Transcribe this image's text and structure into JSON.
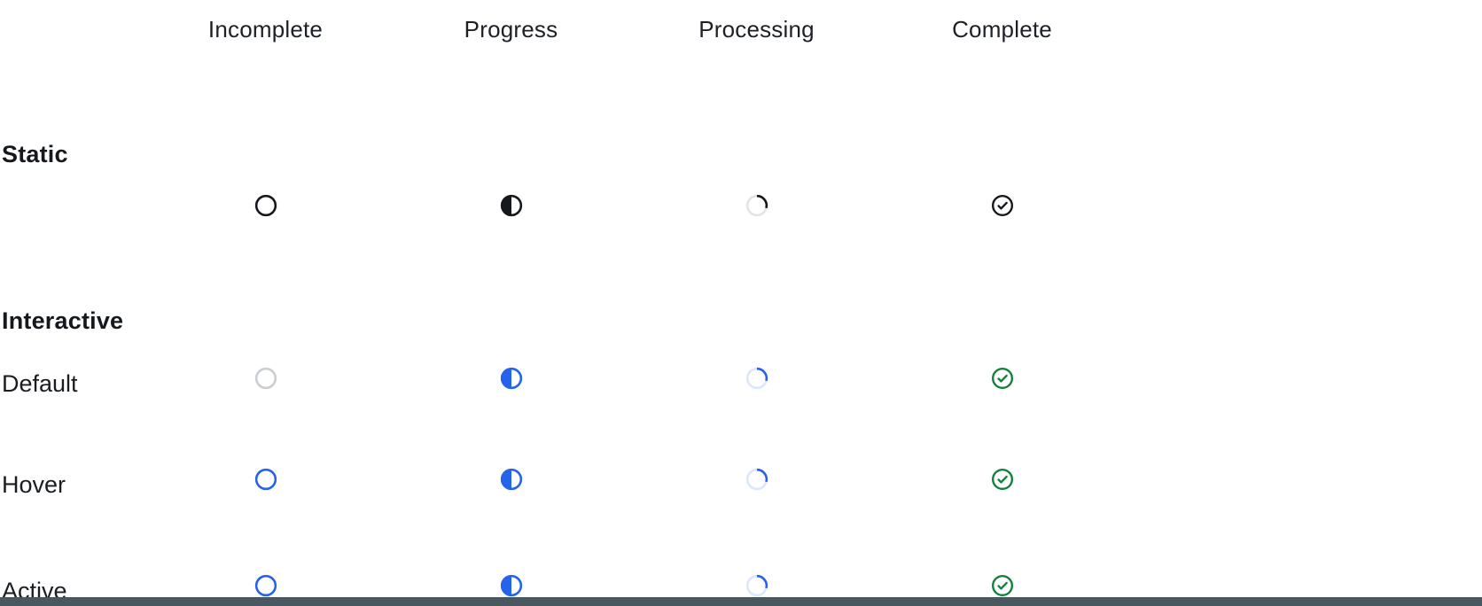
{
  "columns": [
    "Incomplete",
    "Progress",
    "Processing",
    "Complete"
  ],
  "sections": [
    {
      "label": "Static",
      "rows": [
        {
          "name": "static",
          "label": "",
          "interactable": false,
          "cells": [
            {
              "type": "incomplete",
              "color": "ink"
            },
            {
              "type": "progress",
              "color": "ink"
            },
            {
              "type": "processing",
              "color": "ink",
              "track": "gray_track"
            },
            {
              "type": "complete",
              "color": "ink"
            }
          ]
        }
      ]
    },
    {
      "label": "Interactive",
      "rows": [
        {
          "name": "default",
          "label": "Default",
          "interactable": true,
          "cells": [
            {
              "type": "incomplete",
              "color": "gray_muted"
            },
            {
              "type": "progress",
              "color": "blue"
            },
            {
              "type": "processing",
              "color": "blue",
              "track": "blue_track"
            },
            {
              "type": "complete",
              "color": "green"
            }
          ]
        },
        {
          "name": "hover",
          "label": "Hover",
          "interactable": true,
          "cells": [
            {
              "type": "incomplete",
              "color": "blue"
            },
            {
              "type": "progress",
              "color": "blue"
            },
            {
              "type": "processing",
              "color": "blue",
              "track": "blue_track"
            },
            {
              "type": "complete",
              "color": "green"
            }
          ]
        },
        {
          "name": "active",
          "label": "Active",
          "interactable": true,
          "cells": [
            {
              "type": "incomplete",
              "color": "blue"
            },
            {
              "type": "progress",
              "color": "blue"
            },
            {
              "type": "processing",
              "color": "blue",
              "track": "blue_track"
            },
            {
              "type": "complete",
              "color": "green"
            }
          ]
        }
      ]
    }
  ],
  "palette": {
    "ink": "#15191e",
    "blue": "#2563eb",
    "blue_track": "#dbe7fd",
    "green": "#15803d",
    "gray_muted": "#c9cdd4",
    "gray_track": "#e3e4e6",
    "header_text": "#1d2127",
    "bottom_bar": "#49585f"
  }
}
